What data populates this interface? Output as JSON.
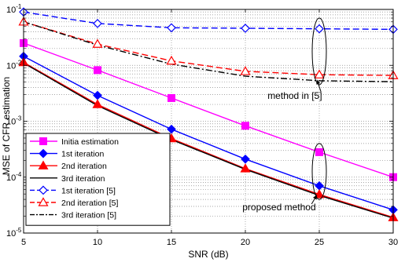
{
  "chart_data": {
    "type": "line",
    "title": "",
    "xlabel": "SNR (dB)",
    "ylabel": "MSE of CFR estimation",
    "xlim": [
      5,
      30
    ],
    "ylim": [
      1e-05,
      0.1
    ],
    "yscale": "log",
    "grid": true,
    "legend_position": "bottom-left",
    "x_ticks": [
      5,
      10,
      15,
      20,
      25,
      30
    ],
    "x_tick_labels": [
      "5",
      "10",
      "15",
      "20",
      "25",
      "30"
    ],
    "y_ticks": [
      1e-05,
      0.0001,
      0.001,
      0.01,
      0.1
    ],
    "y_tick_labels": [
      {
        "base": "10",
        "exp": "-5"
      },
      {
        "base": "10",
        "exp": "-4"
      },
      {
        "base": "10",
        "exp": "-3"
      },
      {
        "base": "10",
        "exp": "-2"
      },
      {
        "base": "10",
        "exp": "-1"
      }
    ],
    "series": [
      {
        "name": "Initia estimation",
        "color": "#ff00ff",
        "dash": "solid",
        "marker": "square-filled",
        "x": [
          5,
          10,
          15,
          20,
          25,
          30
        ],
        "y": [
          0.025,
          0.0082,
          0.0026,
          0.00083,
          0.00028,
          0.0001
        ]
      },
      {
        "name": "1st iteration",
        "color": "#0000ff",
        "dash": "solid",
        "marker": "diamond-filled",
        "x": [
          5,
          10,
          15,
          20,
          25,
          30
        ],
        "y": [
          0.0145,
          0.0029,
          0.00072,
          0.00021,
          7e-05,
          2.6e-05
        ]
      },
      {
        "name": "2nd iteration",
        "color": "#ff0000",
        "dash": "solid",
        "marker": "triangle-filled",
        "x": [
          5,
          10,
          15,
          20,
          25,
          30
        ],
        "y": [
          0.0113,
          0.002,
          0.00049,
          0.000142,
          4.9e-05,
          1.9e-05
        ]
      },
      {
        "name": "3rd iteration",
        "color": "#000000",
        "dash": "solid",
        "marker": "none",
        "x": [
          5,
          10,
          15,
          20,
          25,
          30
        ],
        "y": [
          0.011,
          0.0019,
          0.00047,
          0.000138,
          4.7e-05,
          1.85e-05
        ]
      },
      {
        "name": "1st iteration [5]",
        "color": "#0000ff",
        "dash": "dash",
        "marker": "diamond-open",
        "x": [
          5,
          10,
          15,
          20,
          25,
          30
        ],
        "y": [
          0.09,
          0.056,
          0.047,
          0.046,
          0.045,
          0.044
        ]
      },
      {
        "name": "2nd iteration [5]",
        "color": "#ff0000",
        "dash": "dash",
        "marker": "triangle-open",
        "x": [
          5,
          10,
          15,
          20,
          25,
          30
        ],
        "y": [
          0.06,
          0.024,
          0.012,
          0.0078,
          0.0068,
          0.0066
        ]
      },
      {
        "name": "3rd iteration [5]",
        "color": "#000000",
        "dash": "dashdot",
        "marker": "none",
        "x": [
          5,
          10,
          15,
          20,
          25,
          30
        ],
        "y": [
          0.06,
          0.023,
          0.0105,
          0.0064,
          0.0053,
          0.0051
        ]
      }
    ],
    "annotations": [
      {
        "text": "method in [5]",
        "ellipse_center": [
          25,
          0.018
        ],
        "ellipse_y_range": [
          0.0045,
          0.07
        ],
        "arrow_tip": [
          25,
          0.0055
        ],
        "label_anchor": [
          21.5,
          0.0025
        ]
      },
      {
        "text": "proposed method",
        "ellipse_center": [
          25,
          0.0001
        ],
        "ellipse_y_range": [
          4e-05,
          0.0004
        ],
        "arrow_tip": [
          25,
          4.8e-05
        ],
        "label_anchor": [
          19.8,
          2.55e-05
        ]
      }
    ]
  }
}
